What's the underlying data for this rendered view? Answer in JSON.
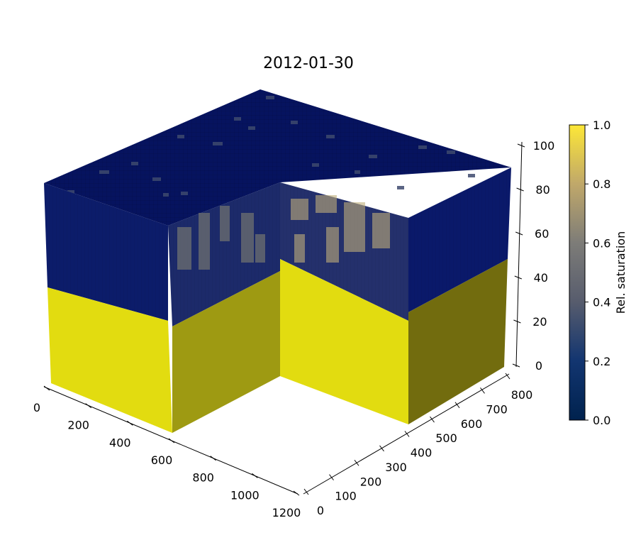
{
  "chart_data": {
    "type": "3d-voxel",
    "title": "2012-01-30",
    "x_axis": {
      "ticks": [
        "0",
        "200",
        "400",
        "600",
        "800",
        "1000",
        "1200"
      ],
      "range": [
        0,
        1200
      ]
    },
    "y_axis": {
      "ticks": [
        "0",
        "100",
        "200",
        "300",
        "400",
        "500",
        "600",
        "700",
        "800"
      ],
      "range": [
        0,
        800
      ]
    },
    "z_axis": {
      "ticks": [
        "0",
        "20",
        "40",
        "60",
        "80",
        "100"
      ],
      "range": [
        0,
        100
      ]
    },
    "colorbar": {
      "label": "Rel. saturation",
      "ticks": [
        "0.0",
        "0.2",
        "0.4",
        "0.6",
        "0.8",
        "1.0"
      ],
      "range": [
        0,
        1
      ],
      "colormap": "cividis"
    },
    "regions": [
      {
        "name": "saturated-zone",
        "z_range": [
          0,
          45
        ],
        "value": 1.0
      },
      {
        "name": "unsaturated-zone",
        "z_range": [
          45,
          100
        ],
        "value": 0.05
      }
    ],
    "colors": {
      "saturated": "#dcd40e",
      "unsaturated": "#06135f",
      "mid": "#7d7c78"
    }
  }
}
